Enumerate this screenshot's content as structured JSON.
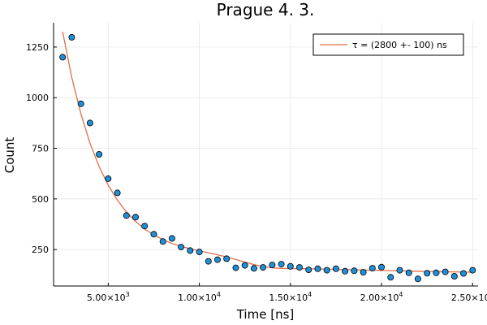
{
  "chart_data": {
    "type": "scatter",
    "title": "Prague 4. 3.",
    "xlabel": "Time [ns]",
    "ylabel": "Count",
    "xlim": [
      2000,
      25300
    ],
    "ylim": [
      70,
      1370
    ],
    "grid": true,
    "legend_position": "top-right",
    "x_ticks": [
      {
        "value": 5000,
        "mantissa": "5.00×10",
        "exp": "3"
      },
      {
        "value": 10000,
        "mantissa": "1.00×10",
        "exp": "4"
      },
      {
        "value": 15000,
        "mantissa": "1.50×10",
        "exp": "4"
      },
      {
        "value": 20000,
        "mantissa": "2.00×10",
        "exp": "4"
      },
      {
        "value": 25000,
        "mantissa": "2.50×10",
        "exp": "4"
      }
    ],
    "y_ticks": [
      250,
      500,
      750,
      1000,
      1250
    ],
    "series": [
      {
        "kind": "scatter",
        "color": "#1f8fd6",
        "points": [
          [
            2500,
            1200
          ],
          [
            3000,
            1298
          ],
          [
            3500,
            970
          ],
          [
            4000,
            875
          ],
          [
            4500,
            720
          ],
          [
            5000,
            600
          ],
          [
            5500,
            530
          ],
          [
            6000,
            418
          ],
          [
            6500,
            410
          ],
          [
            7000,
            366
          ],
          [
            7500,
            326
          ],
          [
            8000,
            290
          ],
          [
            8500,
            305
          ],
          [
            9000,
            262
          ],
          [
            9500,
            245
          ],
          [
            10000,
            238
          ],
          [
            10500,
            192
          ],
          [
            11000,
            200
          ],
          [
            11500,
            205
          ],
          [
            12000,
            160
          ],
          [
            12500,
            172
          ],
          [
            13000,
            157
          ],
          [
            13500,
            162
          ],
          [
            14000,
            174
          ],
          [
            14500,
            178
          ],
          [
            15000,
            167
          ],
          [
            15500,
            162
          ],
          [
            16000,
            150
          ],
          [
            16500,
            155
          ],
          [
            17000,
            148
          ],
          [
            17500,
            155
          ],
          [
            18000,
            143
          ],
          [
            18500,
            145
          ],
          [
            19000,
            138
          ],
          [
            19500,
            158
          ],
          [
            20000,
            163
          ],
          [
            20500,
            113
          ],
          [
            21000,
            148
          ],
          [
            21500,
            135
          ],
          [
            22000,
            105
          ],
          [
            22500,
            133
          ],
          [
            23000,
            135
          ],
          [
            23500,
            140
          ],
          [
            24000,
            118
          ],
          [
            24500,
            132
          ],
          [
            25000,
            148
          ]
        ]
      },
      {
        "kind": "line",
        "name": "τ = (2800 +- 100) ns",
        "color": "#e26f46",
        "points": [
          [
            2500,
            1325
          ],
          [
            3000,
            1100
          ],
          [
            3500,
            920
          ],
          [
            4000,
            775
          ],
          [
            4500,
            660
          ],
          [
            5000,
            568
          ],
          [
            5500,
            494
          ],
          [
            6000,
            435
          ],
          [
            6500,
            389
          ],
          [
            7000,
            351
          ],
          [
            7500,
            322
          ],
          [
            8000,
            299
          ],
          [
            8500,
            280
          ],
          [
            9000,
            266
          ],
          [
            9500,
            254
          ],
          [
            10000,
            243
          ],
          [
            10500,
            234
          ],
          [
            11000,
            224
          ],
          [
            11500,
            213
          ],
          [
            12000,
            201
          ],
          [
            12500,
            188
          ],
          [
            13000,
            176
          ],
          [
            13500,
            166
          ],
          [
            14000,
            160
          ],
          [
            14500,
            157
          ],
          [
            15000,
            156
          ],
          [
            15500,
            156
          ],
          [
            16000,
            155
          ],
          [
            16500,
            154
          ],
          [
            17000,
            153
          ],
          [
            17500,
            152
          ],
          [
            18000,
            151
          ],
          [
            18500,
            150
          ],
          [
            19000,
            149
          ],
          [
            19500,
            148
          ],
          [
            20000,
            147
          ],
          [
            20500,
            146
          ],
          [
            21000,
            145
          ],
          [
            21500,
            144
          ],
          [
            22000,
            143
          ],
          [
            22500,
            142
          ],
          [
            23000,
            141
          ],
          [
            23500,
            140
          ],
          [
            24000,
            140
          ],
          [
            24500,
            139
          ],
          [
            25000,
            138
          ]
        ]
      }
    ]
  }
}
